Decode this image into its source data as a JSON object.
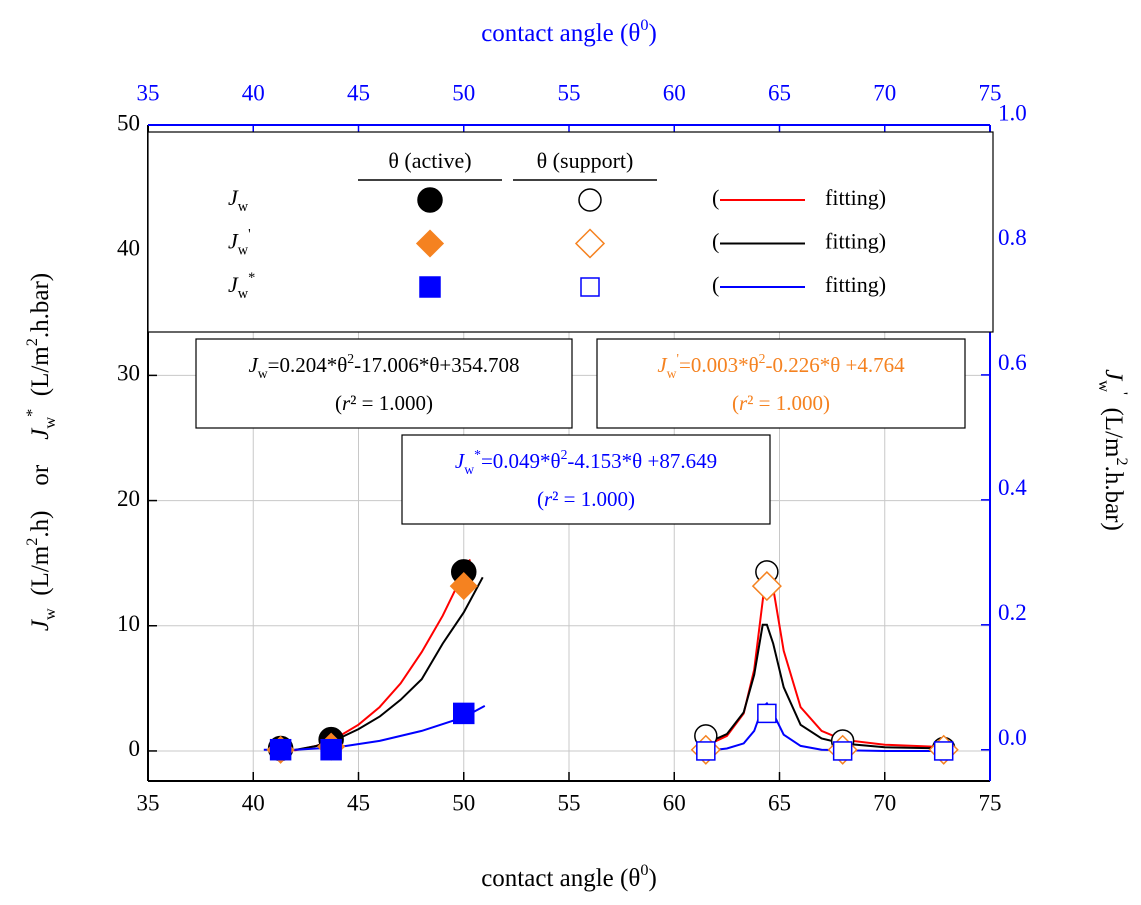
{
  "chart_data": {
    "type": "scatter",
    "x_label": [
      {
        "t": "contact angle (θ"
      },
      {
        "t": "0",
        "s": "sup"
      },
      {
        "t": ")"
      }
    ],
    "x2_label": [
      {
        "t": "contact angle (θ"
      },
      {
        "t": "0",
        "s": "sup"
      },
      {
        "t": ")"
      }
    ],
    "y_label": [
      {
        "t": "J",
        "s": "i"
      },
      {
        "t": "w",
        "s": "sub"
      },
      {
        "t": "  (L/m"
      },
      {
        "t": "2",
        "s": "sup"
      },
      {
        "t": ".h)    or    "
      },
      {
        "t": "J",
        "s": "i"
      },
      {
        "t": "w",
        "s": "sub"
      },
      {
        "t": "*",
        "s": "sup"
      },
      {
        "t": "  (L/m"
      },
      {
        "t": "2",
        "s": "sup"
      },
      {
        "t": ".h.bar)"
      }
    ],
    "y2_label": [
      {
        "t": "J",
        "s": "i"
      },
      {
        "t": "w",
        "s": "sub"
      },
      {
        "t": "'",
        "s": "sup"
      },
      {
        "t": "  (L/m"
      },
      {
        "t": "2",
        "s": "sup"
      },
      {
        "t": ".h.bar)"
      }
    ],
    "xlim": [
      35,
      75
    ],
    "xticks": [
      35,
      40,
      45,
      50,
      55,
      60,
      65,
      70,
      75
    ],
    "x2lim": [
      35,
      75
    ],
    "x2ticks": [
      35,
      40,
      45,
      50,
      55,
      60,
      65,
      70,
      75
    ],
    "ylim": [
      -2.4,
      50
    ],
    "yticks": [
      0,
      10,
      20,
      30,
      40,
      50
    ],
    "y2lim": [
      -0.05,
      1.0
    ],
    "y2ticks": [
      {
        "value": 0,
        "label": "0.0"
      },
      0.2,
      0.4,
      0.6,
      0.8,
      {
        "value": 1,
        "label": "1.0"
      }
    ],
    "grid": true,
    "axis_color": "#000000",
    "axis2_color": "#0000ff",
    "series": [
      {
        "marker": "circle",
        "filled": true,
        "color": "#000000",
        "axis": "y",
        "x": [
          41.3,
          43.7,
          50
        ],
        "values": [
          0.2,
          0.9,
          14.3
        ]
      },
      {
        "marker": "circle",
        "filled": false,
        "color": "#000000",
        "axis": "y",
        "x": [
          61.5,
          64.4,
          68,
          72.8
        ],
        "values": [
          1.2,
          14.3,
          0.8,
          0.2
        ]
      },
      {
        "marker": "diamond",
        "filled": true,
        "color": "#f58220",
        "axis": "y2",
        "x": [
          41.3,
          43.7,
          50
        ],
        "values": [
          0,
          0.005,
          0.262
        ]
      },
      {
        "marker": "diamond",
        "filled": false,
        "color": "#f58220",
        "axis": "y2",
        "x": [
          61.5,
          64.4,
          68,
          72.8
        ],
        "values": [
          0,
          0.262,
          0,
          0
        ]
      },
      {
        "marker": "square",
        "filled": true,
        "color": "#0000ff",
        "axis": "y",
        "x": [
          41.3,
          43.7,
          50
        ],
        "values": [
          0.1,
          0.1,
          3.0
        ]
      },
      {
        "marker": "square",
        "filled": false,
        "color": "#0000ff",
        "axis": "y",
        "x": [
          61.5,
          64.4,
          68,
          72.8
        ],
        "values": [
          0,
          3.0,
          0,
          0
        ]
      }
    ],
    "fits": [
      {
        "color": "#ff0000",
        "axis": "y",
        "x": [
          41.5,
          42,
          43,
          44,
          45,
          46,
          47,
          48,
          49,
          50.3
        ],
        "values": [
          0.1,
          0.05,
          0.4,
          1.1,
          2.1,
          3.5,
          5.4,
          7.9,
          10.8,
          15.3
        ]
      },
      {
        "color": "#000000",
        "axis": "y2",
        "x": [
          42,
          43,
          44,
          45,
          46,
          47,
          48,
          49,
          50,
          50.9
        ],
        "values": [
          0,
          0.006,
          0.017,
          0.033,
          0.053,
          0.08,
          0.113,
          0.17,
          0.22,
          0.276
        ]
      },
      {
        "color": "#0000ff",
        "axis": "y",
        "x": [
          40.5,
          42,
          44,
          46,
          48,
          50,
          51
        ],
        "values": [
          0.1,
          0.1,
          0.3,
          0.8,
          1.6,
          2.7,
          3.6
        ]
      },
      {
        "color": "#ff0000",
        "axis": "y",
        "x": [
          61.5,
          62.5,
          63.3,
          63.8,
          64.2,
          64.4,
          64.7,
          65.2,
          66,
          67,
          68,
          70,
          73
        ],
        "values": [
          0.4,
          1.2,
          3,
          6.5,
          12,
          14.7,
          13,
          8,
          3.5,
          1.6,
          0.9,
          0.5,
          0.3
        ]
      },
      {
        "color": "#000000",
        "axis": "y2",
        "x": [
          61.5,
          62.5,
          63.3,
          63.8,
          64.2,
          64.4,
          64.7,
          65.2,
          66,
          67,
          68,
          70,
          73
        ],
        "values": [
          0.01,
          0.025,
          0.06,
          0.12,
          0.2,
          0.2,
          0.17,
          0.1,
          0.04,
          0.018,
          0.01,
          0.004,
          0.002
        ]
      },
      {
        "color": "#0000ff",
        "axis": "y",
        "x": [
          61.5,
          62.5,
          63.3,
          63.8,
          64.2,
          64.4,
          64.7,
          65.2,
          66,
          67,
          68,
          70,
          73
        ],
        "values": [
          0,
          0.2,
          0.6,
          1.6,
          3.5,
          3.8,
          3,
          1.3,
          0.4,
          0.1,
          0.05,
          0,
          0
        ]
      }
    ],
    "legend": {
      "headers": [
        "θ (active)",
        "θ (support)"
      ],
      "rows": [
        {
          "label": [
            {
              "t": "J",
              "s": "i"
            },
            {
              "t": "w",
              "s": "sub"
            }
          ],
          "open": "(",
          "fit": "fitting)"
        },
        {
          "label": [
            {
              "t": "J",
              "s": "i"
            },
            {
              "t": "w",
              "s": "sub"
            },
            {
              "t": "'",
              "s": "sup"
            }
          ],
          "open": "(",
          "fit": "fitting)"
        },
        {
          "label": [
            {
              "t": "J",
              "s": "i"
            },
            {
              "t": "w",
              "s": "sub"
            },
            {
              "t": "*",
              "s": "sup"
            }
          ],
          "open": "(",
          "fit": "fitting)"
        }
      ]
    },
    "equations": [
      {
        "color": "#000000",
        "lines": [
          [
            {
              "t": "J",
              "s": "i"
            },
            {
              "t": "w",
              "s": "sub"
            },
            {
              "t": "=0.204*θ"
            },
            {
              "t": "2",
              "s": "sup"
            },
            {
              "t": "-17.006*θ+354.708"
            }
          ],
          [
            {
              "t": "("
            },
            {
              "t": "r",
              "s": "i"
            },
            {
              "t": "² = 1.000)"
            }
          ]
        ]
      },
      {
        "color": "#f58220",
        "lines": [
          [
            {
              "t": "J",
              "s": "i"
            },
            {
              "t": "w",
              "s": "sub"
            },
            {
              "t": "'",
              "s": "sup"
            },
            {
              "t": "=0.003*θ"
            },
            {
              "t": "2",
              "s": "sup"
            },
            {
              "t": "-0.226*θ +4.764"
            }
          ],
          [
            {
              "t": "("
            },
            {
              "t": "r",
              "s": "i"
            },
            {
              "t": "² = 1.000)"
            }
          ]
        ]
      },
      {
        "color": "#0000ff",
        "lines": [
          [
            {
              "t": "J",
              "s": "i"
            },
            {
              "t": "w",
              "s": "sub"
            },
            {
              "t": "*",
              "s": "sup"
            },
            {
              "t": "=0.049*θ"
            },
            {
              "t": "2",
              "s": "sup"
            },
            {
              "t": "-4.153*θ +87.649"
            }
          ],
          [
            {
              "t": "("
            },
            {
              "t": "r",
              "s": "i"
            },
            {
              "t": "² = 1.000)"
            }
          ]
        ]
      }
    ]
  }
}
